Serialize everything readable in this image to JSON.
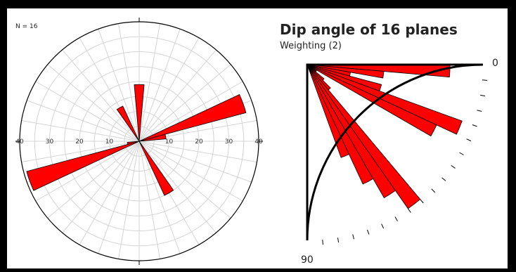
{
  "colors": {
    "petal": "#ff0000",
    "outline": "#000000",
    "grid": "#d4d4d4",
    "text": "#222222"
  },
  "chart_data": [
    {
      "type": "rose",
      "count_label": "N = 16",
      "rmax": 40,
      "radial_tick_values": [
        10,
        20,
        30,
        40
      ],
      "radial_tick_labels": [
        "10",
        "20",
        "30",
        "40"
      ],
      "bin_width_deg": 10,
      "symmetric": true,
      "bins": [
        {
          "azimuth": 0,
          "value": 19
        },
        {
          "azimuth": 150,
          "value": 20
        },
        {
          "azimuth": 330,
          "value": 13
        },
        {
          "azimuth": 80,
          "value": 9
        },
        {
          "azimuth": 260,
          "value": 4
        },
        {
          "azimuth": 70,
          "value": 37
        },
        {
          "azimuth": 250,
          "value": 39
        },
        {
          "azimuth": 10,
          "value": 0
        }
      ],
      "grid": true
    },
    {
      "type": "fan",
      "title": "Dip angle of 16 planes",
      "subtitle": "Weighting (2)",
      "axis_start_label": "0",
      "axis_end_label": "90",
      "angle_range": [
        0,
        90
      ],
      "bin_width_deg": 5,
      "bins": [
        {
          "start": 0,
          "value": 13
        },
        {
          "start": 5,
          "value": 7
        },
        {
          "start": 10,
          "value": 4
        },
        {
          "start": 15,
          "value": 7
        },
        {
          "start": 20,
          "value": 15
        },
        {
          "start": 25,
          "value": 13
        },
        {
          "start": 30,
          "value": 1
        },
        {
          "start": 35,
          "value": 1
        },
        {
          "start": 40,
          "value": 2
        },
        {
          "start": 45,
          "value": 3
        },
        {
          "start": 50,
          "value": 16
        },
        {
          "start": 55,
          "value": 14
        },
        {
          "start": 60,
          "value": 12
        },
        {
          "start": 65,
          "value": 9
        }
      ],
      "rmax": 16
    }
  ]
}
